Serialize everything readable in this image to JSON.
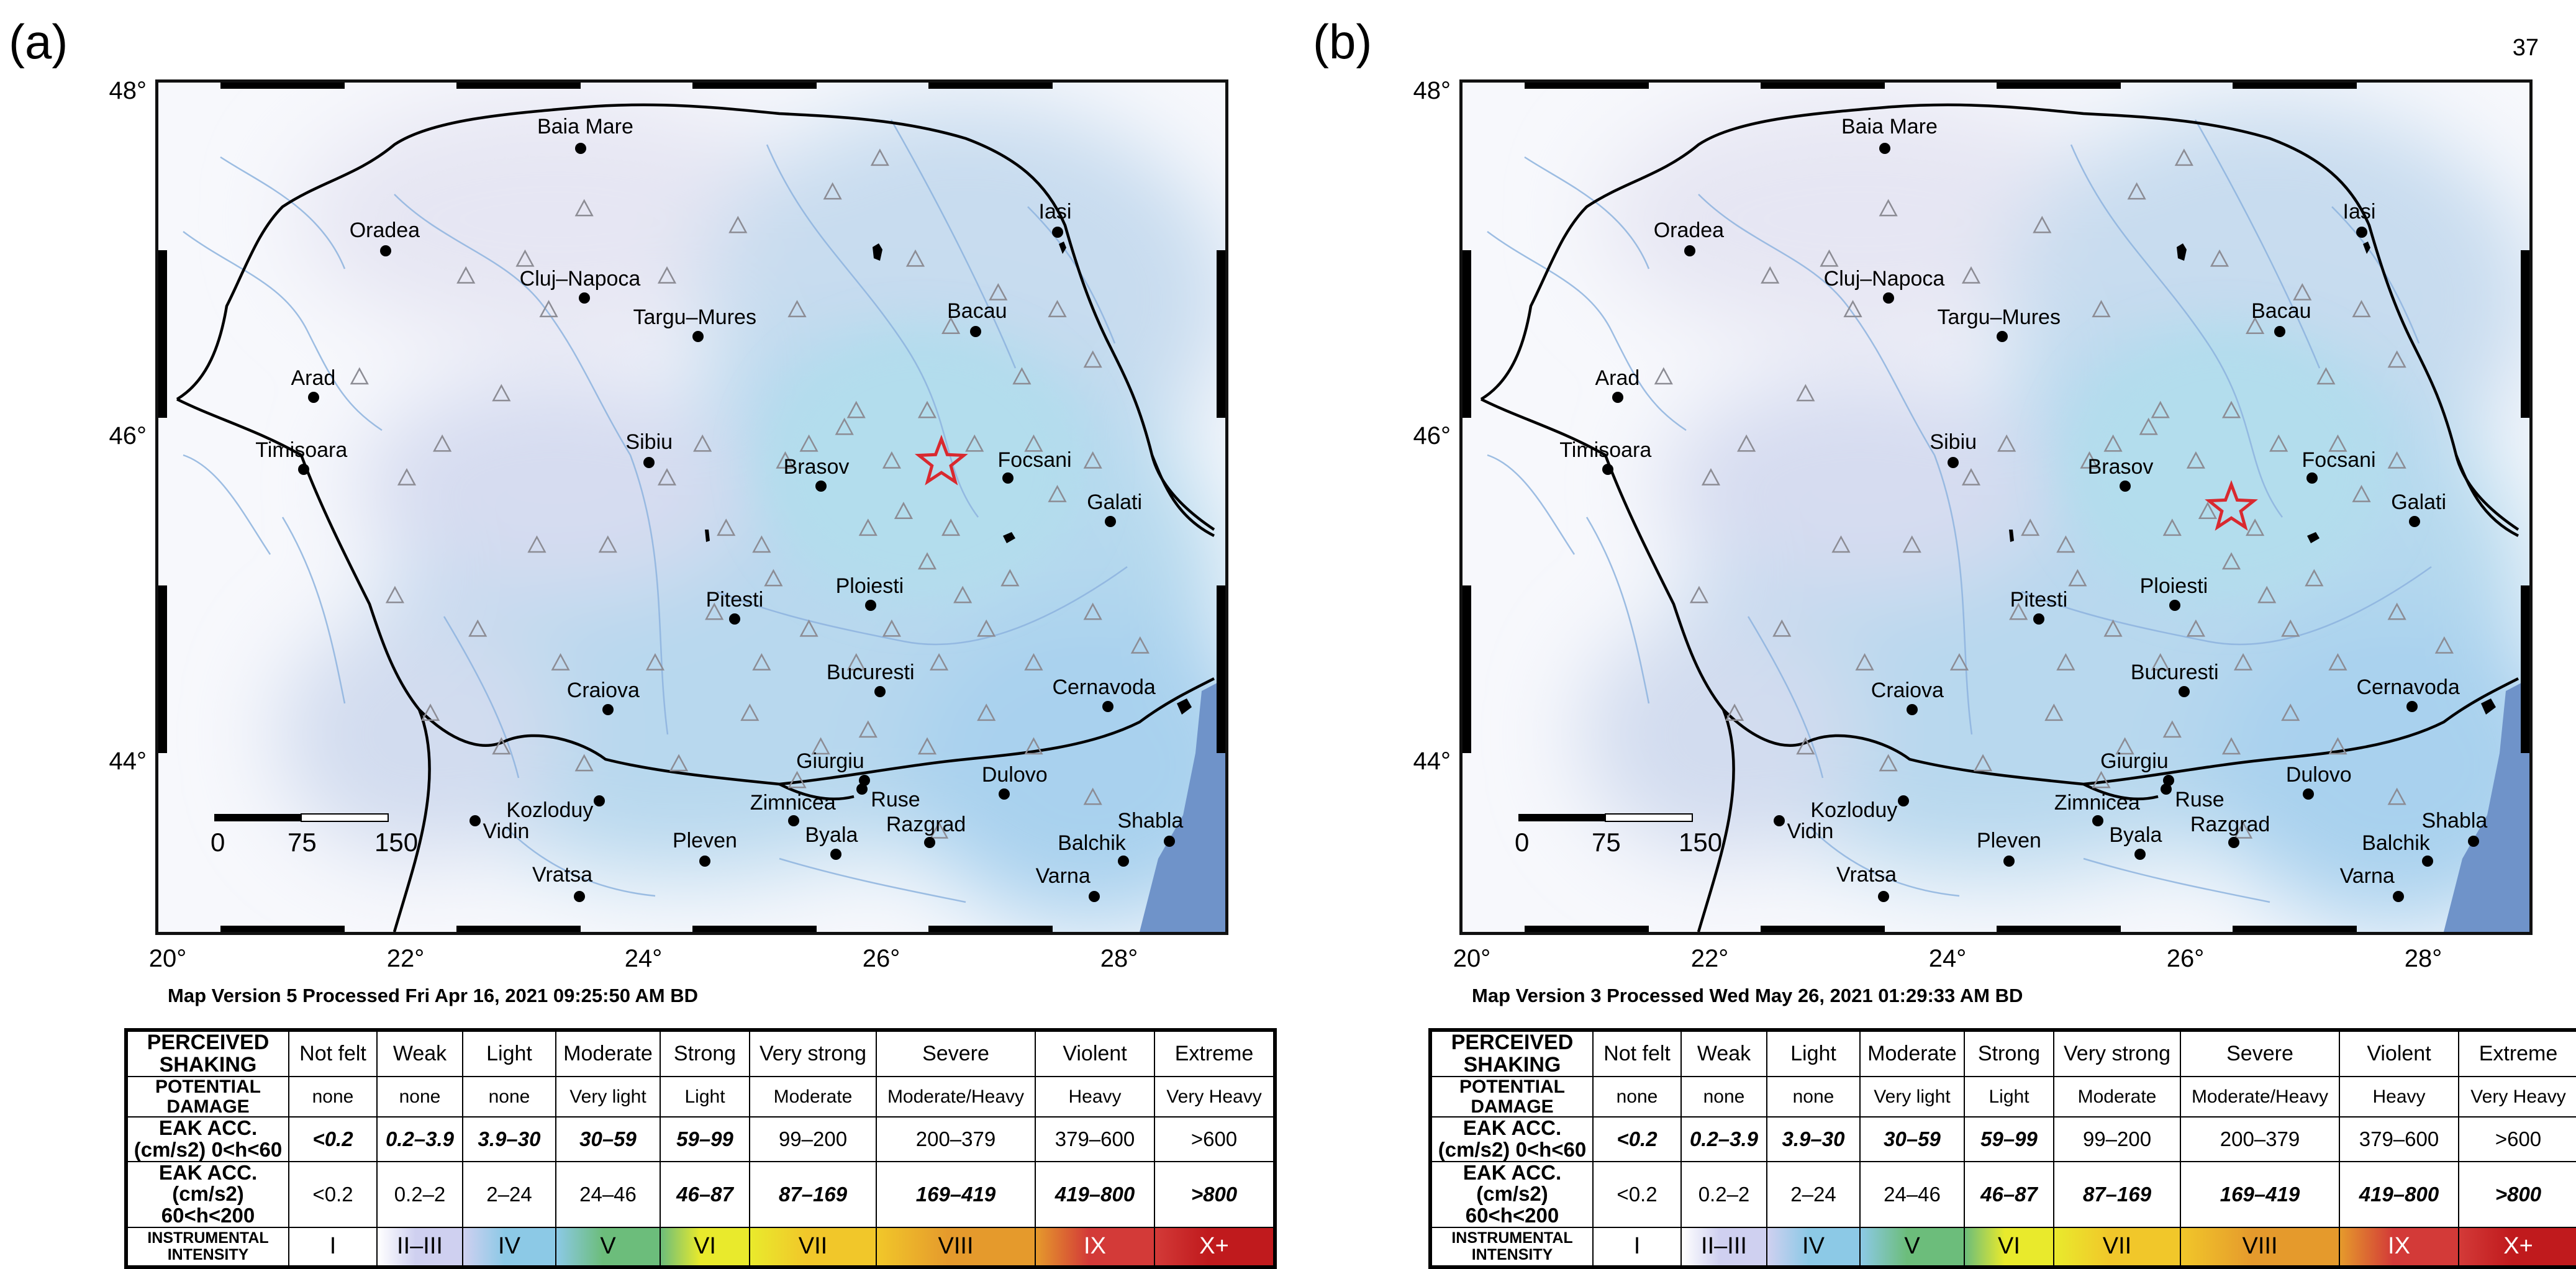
{
  "page_number": "37",
  "map_common": {
    "lat_labels": [
      "48°",
      "46°",
      "44°"
    ],
    "lon_labels": [
      "20°",
      "22°",
      "24°",
      "26°",
      "28°"
    ],
    "scale_labels": [
      "0",
      "75",
      "150"
    ],
    "cities": [
      {
        "name": "Baia Mare",
        "lon": 23.57,
        "lat": 47.66
      },
      {
        "name": "Oradea",
        "lon": 21.92,
        "lat": 47.05
      },
      {
        "name": "Cluj–Napoca",
        "lon": 23.6,
        "lat": 46.77
      },
      {
        "name": "Targu–Mures",
        "lon": 24.56,
        "lat": 46.54
      },
      {
        "name": "Iasi",
        "lon": 27.6,
        "lat": 47.16
      },
      {
        "name": "Bacau",
        "lon": 26.91,
        "lat": 46.57
      },
      {
        "name": "Arad",
        "lon": 21.31,
        "lat": 46.18
      },
      {
        "name": "Timisoara",
        "lon": 21.23,
        "lat": 45.75
      },
      {
        "name": "Sibiu",
        "lon": 24.15,
        "lat": 45.79
      },
      {
        "name": "Brasov",
        "lon": 25.6,
        "lat": 45.65
      },
      {
        "name": "Focsani",
        "lon": 27.18,
        "lat": 45.7
      },
      {
        "name": "Galati",
        "lon": 28.05,
        "lat": 45.44
      },
      {
        "name": "Ploiesti",
        "lon": 26.02,
        "lat": 44.94
      },
      {
        "name": "Pitesti",
        "lon": 24.87,
        "lat": 44.86
      },
      {
        "name": "Bucuresti",
        "lon": 26.1,
        "lat": 44.43
      },
      {
        "name": "Cernavoda",
        "lon": 28.03,
        "lat": 44.34
      },
      {
        "name": "Craiova",
        "lon": 23.8,
        "lat": 44.32
      },
      {
        "name": "Giurgiu",
        "lon": 25.97,
        "lat": 43.9
      },
      {
        "name": "Dulovo",
        "lon": 27.15,
        "lat": 43.82
      },
      {
        "name": "Kozloduy",
        "lon": 23.73,
        "lat": 43.78
      },
      {
        "name": "Zimnicea",
        "lon": 25.37,
        "lat": 43.66
      },
      {
        "name": "Ruse",
        "lon": 25.95,
        "lat": 43.85
      },
      {
        "name": "Razgrad",
        "lon": 26.52,
        "lat": 43.53
      },
      {
        "name": "Vidin",
        "lon": 22.68,
        "lat": 43.66
      },
      {
        "name": "Pleven",
        "lon": 24.62,
        "lat": 43.42
      },
      {
        "name": "Byala",
        "lon": 25.73,
        "lat": 43.46
      },
      {
        "name": "Balchik",
        "lon": 28.16,
        "lat": 43.42
      },
      {
        "name": "Shabla",
        "lon": 28.55,
        "lat": 43.54
      },
      {
        "name": "Vratsa",
        "lon": 23.56,
        "lat": 43.21
      },
      {
        "name": "Varna",
        "lon": 27.91,
        "lat": 43.21
      }
    ]
  },
  "panel_a": {
    "letter": "(a)",
    "version_text": "Map Version 5 Processed Fri Apr 16, 2021 09:25:50 AM BD",
    "epicenter": {
      "lon": 26.62,
      "lat": 45.79
    }
  },
  "panel_b": {
    "letter": "(b)",
    "version_text": "Map Version 3 Processed Wed May 26, 2021 01:29:33 AM BD",
    "epicenter": {
      "lon": 26.5,
      "lat": 45.52
    }
  },
  "legend": {
    "perceived_shaking_head": "PERCEIVED SHAKING",
    "potential_damage_head": "POTENTIAL DAMAGE",
    "acc1_head": "EAK ACC.(cm/s2) 0<h<60",
    "acc2_head": "EAK ACC.(cm/s2) 60<h<200",
    "intensity_head": "INSTRUMENTAL INTENSITY",
    "shaking": [
      "Not felt",
      "Weak",
      "Light",
      "Moderate",
      "Strong",
      "Very strong",
      "Severe",
      "Violent",
      "Extreme"
    ],
    "damage": [
      "none",
      "none",
      "none",
      "Very light",
      "Light",
      "Moderate",
      "Moderate/Heavy",
      "Heavy",
      "Very Heavy"
    ],
    "acc1": [
      "<0.2",
      "0.2–3.9",
      "3.9–30",
      "30–59",
      "59–99",
      "99–200",
      "200–379",
      "379–600",
      ">600"
    ],
    "acc2": [
      "<0.2",
      "0.2–2",
      "2–24",
      "24–46",
      "46–87",
      "87–169",
      "169–419",
      "419–800",
      ">800"
    ],
    "intensity": [
      "I",
      "II–III",
      "IV",
      "V",
      "VI",
      "VII",
      "VIII",
      "IX",
      "X+"
    ]
  }
}
